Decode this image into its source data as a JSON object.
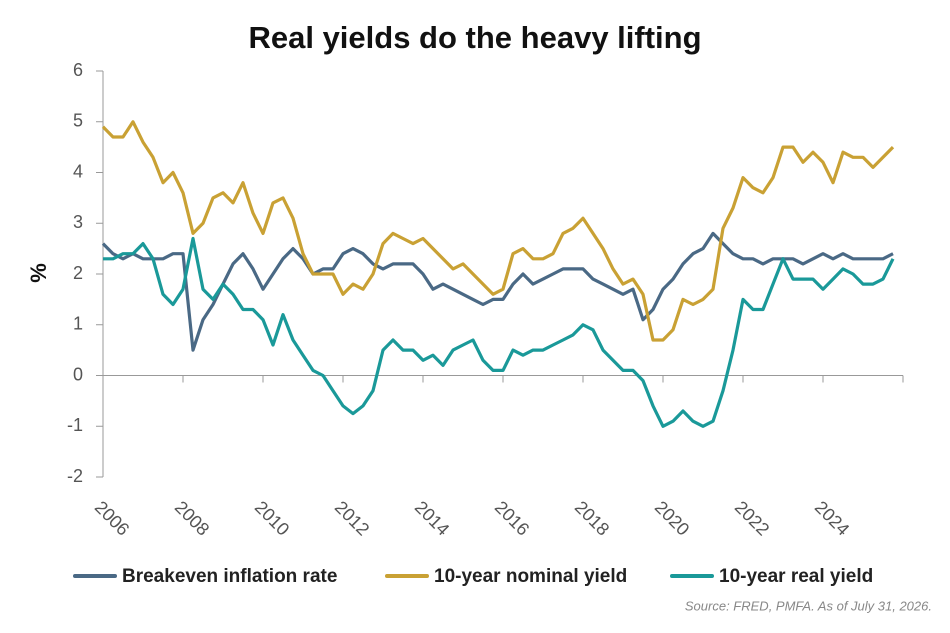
{
  "chart_data": {
    "type": "line",
    "title": "Real yields do the heavy lifting",
    "y_label": "%",
    "source": "Source: FRED, PMFA.  As of July 31, 2026.",
    "x": [
      2006,
      2006.25,
      2006.5,
      2006.75,
      2007,
      2007.25,
      2007.5,
      2007.75,
      2008,
      2008.25,
      2008.5,
      2008.75,
      2009,
      2009.25,
      2009.5,
      2009.75,
      2010,
      2010.25,
      2010.5,
      2010.75,
      2011,
      2011.25,
      2011.5,
      2011.75,
      2012,
      2012.25,
      2012.5,
      2012.75,
      2013,
      2013.25,
      2013.5,
      2013.75,
      2014,
      2014.25,
      2014.5,
      2014.75,
      2015,
      2015.25,
      2015.5,
      2015.75,
      2016,
      2016.25,
      2016.5,
      2016.75,
      2017,
      2017.25,
      2017.5,
      2017.75,
      2018,
      2018.25,
      2018.5,
      2018.75,
      2019,
      2019.25,
      2019.5,
      2019.75,
      2020,
      2020.25,
      2020.5,
      2020.75,
      2021,
      2021.25,
      2021.5,
      2021.75,
      2022,
      2022.25,
      2022.5,
      2022.75,
      2023,
      2023.25,
      2023.5,
      2023.75,
      2024,
      2024.25,
      2024.5,
      2024.75,
      2025,
      2025.25,
      2025.5,
      2025.75
    ],
    "series": [
      {
        "name": "Breakeven inflation rate",
        "color": "#4a6985",
        "values": [
          2.6,
          2.4,
          2.3,
          2.4,
          2.3,
          2.3,
          2.3,
          2.4,
          2.4,
          0.5,
          1.1,
          1.4,
          1.8,
          2.2,
          2.4,
          2.1,
          1.7,
          2.0,
          2.3,
          2.5,
          2.3,
          2.0,
          2.1,
          2.1,
          2.4,
          2.5,
          2.4,
          2.2,
          2.1,
          2.2,
          2.2,
          2.2,
          2.0,
          1.7,
          1.8,
          1.7,
          1.6,
          1.5,
          1.4,
          1.5,
          1.5,
          1.8,
          2.0,
          1.8,
          1.9,
          2.0,
          2.1,
          2.1,
          2.1,
          1.9,
          1.8,
          1.7,
          1.6,
          1.7,
          1.1,
          1.3,
          1.7,
          1.9,
          2.2,
          2.4,
          2.5,
          2.8,
          2.6,
          2.4,
          2.3,
          2.3,
          2.2,
          2.3,
          2.3,
          2.3,
          2.2,
          2.3,
          2.4,
          2.3,
          2.4,
          2.3,
          2.3,
          2.3,
          2.3,
          2.4
        ]
      },
      {
        "name": "10-year nominal yield",
        "color": "#c9a134",
        "values": [
          4.9,
          4.7,
          4.7,
          5.0,
          4.6,
          4.3,
          3.8,
          4.0,
          3.6,
          2.8,
          3.0,
          3.5,
          3.6,
          3.4,
          3.8,
          3.2,
          2.8,
          3.4,
          3.5,
          3.1,
          2.4,
          2.0,
          2.0,
          2.0,
          1.6,
          1.8,
          1.7,
          2.0,
          2.6,
          2.8,
          2.7,
          2.6,
          2.7,
          2.5,
          2.3,
          2.1,
          2.2,
          2.0,
          1.8,
          1.6,
          1.7,
          2.4,
          2.5,
          2.3,
          2.3,
          2.4,
          2.8,
          2.9,
          3.1,
          2.8,
          2.5,
          2.1,
          1.8,
          1.9,
          1.6,
          0.7,
          0.7,
          0.9,
          1.5,
          1.4,
          1.5,
          1.7,
          2.9,
          3.3,
          3.9,
          3.7,
          3.6,
          3.9,
          4.5,
          4.5,
          4.2,
          4.4,
          4.2,
          3.8,
          4.4,
          4.3,
          4.3,
          4.1,
          4.3,
          4.5
        ]
      },
      {
        "name": "10-year real yield",
        "color": "#1a9999",
        "values": [
          2.3,
          2.3,
          2.4,
          2.4,
          2.6,
          2.3,
          1.6,
          1.4,
          1.7,
          2.7,
          1.7,
          1.5,
          1.8,
          1.6,
          1.3,
          1.3,
          1.1,
          0.6,
          1.2,
          0.7,
          0.4,
          0.1,
          0.0,
          -0.3,
          -0.6,
          -0.75,
          -0.6,
          -0.3,
          0.5,
          0.7,
          0.5,
          0.5,
          0.3,
          0.4,
          0.2,
          0.5,
          0.6,
          0.7,
          0.3,
          0.1,
          0.1,
          0.5,
          0.4,
          0.5,
          0.5,
          0.6,
          0.7,
          0.8,
          1.0,
          0.9,
          0.5,
          0.3,
          0.1,
          0.1,
          -0.1,
          -0.6,
          -1.0,
          -0.9,
          -0.7,
          -0.9,
          -1.0,
          -0.9,
          -0.3,
          0.5,
          1.5,
          1.3,
          1.3,
          1.8,
          2.3,
          1.9,
          1.9,
          1.9,
          1.7,
          1.9,
          2.1,
          2.0,
          1.8,
          1.8,
          1.9,
          2.3
        ]
      }
    ],
    "xlim": [
      2006,
      2026
    ],
    "xticks": [
      2006,
      2008,
      2010,
      2012,
      2014,
      2016,
      2018,
      2020,
      2022,
      2024
    ],
    "ylim": [
      -2,
      6
    ],
    "yticks": [
      -2,
      -1,
      0,
      1,
      2,
      3,
      4,
      5,
      6
    ],
    "grid": false
  }
}
